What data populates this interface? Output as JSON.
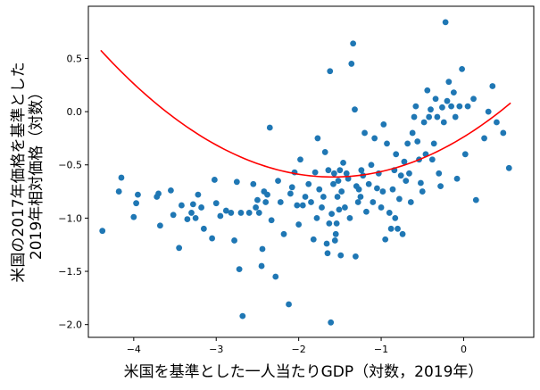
{
  "chart_data": {
    "type": "scatter",
    "xlabel": "米国を基準とした一人当たりGDP（対数，2019年）",
    "ylabel_lines": [
      "米国の2017年価格を基準とした",
      "2019年相対価格（対数）"
    ],
    "xlim": [
      -4.55,
      0.85
    ],
    "ylim": [
      -2.12,
      0.99
    ],
    "x_ticks": [
      -4,
      -3,
      -2,
      -1,
      0
    ],
    "y_ticks": [
      0.5,
      0.0,
      -0.5,
      -1.0,
      -1.5,
      -2.0
    ],
    "x_tick_labels": [
      "−4",
      "−3",
      "−2",
      "−1",
      "0"
    ],
    "y_tick_labels": [
      "0.5",
      "0.0",
      "−0.5",
      "−1.0",
      "−1.5",
      "−2.0"
    ],
    "point_color": "#1f77b4",
    "fit_color": "#ff0000",
    "fit": {
      "type": "quadratic",
      "coefficients": [
        -0.238,
        0.475,
        0.15
      ],
      "x_range": [
        -4.4,
        0.57
      ]
    },
    "points": [
      [
        -4.38,
        -1.12
      ],
      [
        -4.18,
        -0.75
      ],
      [
        -4.15,
        -0.62
      ],
      [
        -4.0,
        -0.99
      ],
      [
        -3.97,
        -0.86
      ],
      [
        -3.95,
        -0.78
      ],
      [
        -3.72,
        -0.8
      ],
      [
        -3.7,
        -0.77
      ],
      [
        -3.68,
        -1.07
      ],
      [
        -3.55,
        -0.74
      ],
      [
        -3.52,
        -0.97
      ],
      [
        -3.45,
        -1.28
      ],
      [
        -3.42,
        -0.88
      ],
      [
        -3.35,
        -1.01
      ],
      [
        -3.3,
        -0.95
      ],
      [
        -3.28,
        -0.87
      ],
      [
        -3.25,
        -1.0
      ],
      [
        -3.22,
        -0.78
      ],
      [
        -3.18,
        -0.9
      ],
      [
        -3.15,
        -1.1
      ],
      [
        -3.05,
        -1.19
      ],
      [
        -3.02,
        -0.64
      ],
      [
        -3.0,
        -0.86
      ],
      [
        -2.95,
        -0.98
      ],
      [
        -2.88,
        -0.93
      ],
      [
        -2.82,
        -0.95
      ],
      [
        -2.78,
        -1.21
      ],
      [
        -2.75,
        -0.66
      ],
      [
        -2.72,
        -1.48
      ],
      [
        -2.7,
        -0.95
      ],
      [
        -2.68,
        -1.92
      ],
      [
        -2.6,
        -0.95
      ],
      [
        -2.55,
        -0.68
      ],
      [
        -2.52,
        -0.9
      ],
      [
        -2.5,
        -0.83
      ],
      [
        -2.48,
        -0.95
      ],
      [
        -2.45,
        -1.45
      ],
      [
        -2.44,
        -1.29
      ],
      [
        -2.42,
        -0.75
      ],
      [
        -2.4,
        -0.85
      ],
      [
        -2.38,
        -0.78
      ],
      [
        -2.35,
        -0.15
      ],
      [
        -2.33,
        -1.02
      ],
      [
        -2.28,
        -1.55
      ],
      [
        -2.25,
        -0.65
      ],
      [
        -2.22,
        -0.85
      ],
      [
        -2.18,
        -1.15
      ],
      [
        -2.12,
        -1.81
      ],
      [
        -2.1,
        -0.77
      ],
      [
        -2.08,
        -0.71
      ],
      [
        -2.05,
        -0.57
      ],
      [
        -2.02,
        -0.88
      ],
      [
        -2.0,
        -1.06
      ],
      [
        -1.98,
        -0.45
      ],
      [
        -1.95,
        -0.88
      ],
      [
        -1.92,
        -0.8
      ],
      [
        -1.88,
        -0.68
      ],
      [
        -1.85,
        -0.85
      ],
      [
        -1.82,
        -1.2
      ],
      [
        -1.8,
        -0.57
      ],
      [
        -1.78,
        -1.0
      ],
      [
        -1.77,
        -0.25
      ],
      [
        -1.75,
        -0.73
      ],
      [
        -1.72,
        -0.9
      ],
      [
        -1.7,
        -0.8
      ],
      [
        -1.68,
        -0.38
      ],
      [
        -1.66,
        -1.24
      ],
      [
        -1.65,
        -1.33
      ],
      [
        -1.64,
        -0.55
      ],
      [
        -1.63,
        -1.05
      ],
      [
        -1.62,
        0.38
      ],
      [
        -1.61,
        -1.98
      ],
      [
        -1.6,
        -0.96
      ],
      [
        -1.58,
        -0.68
      ],
      [
        -1.57,
        -0.58
      ],
      [
        -1.56,
        -1.21
      ],
      [
        -1.55,
        -1.15
      ],
      [
        -1.54,
        -1.05
      ],
      [
        -1.53,
        -0.8
      ],
      [
        -1.52,
        -0.65
      ],
      [
        -1.51,
        -0.92
      ],
      [
        -1.5,
        -0.55
      ],
      [
        -1.49,
        -1.35
      ],
      [
        -1.48,
        -0.75
      ],
      [
        -1.46,
        -0.48
      ],
      [
        -1.44,
        -0.9
      ],
      [
        -1.42,
        -0.58
      ],
      [
        -1.4,
        -0.63
      ],
      [
        -1.38,
        -1.0
      ],
      [
        -1.36,
        0.45
      ],
      [
        -1.34,
        0.64
      ],
      [
        -1.32,
        0.02
      ],
      [
        -1.31,
        -1.36
      ],
      [
        -1.3,
        -0.7
      ],
      [
        -1.28,
        -0.85
      ],
      [
        -1.27,
        -0.73
      ],
      [
        -1.25,
        -0.8
      ],
      [
        -1.24,
        -0.55
      ],
      [
        -1.22,
        -0.6
      ],
      [
        -1.2,
        -0.2
      ],
      [
        -1.18,
        -0.94
      ],
      [
        -1.15,
        -0.68
      ],
      [
        -1.12,
        -0.5
      ],
      [
        -1.1,
        -0.85
      ],
      [
        -1.08,
        -0.25
      ],
      [
        -1.05,
        -0.72
      ],
      [
        -1.03,
        -0.58
      ],
      [
        -1.0,
        -0.9
      ],
      [
        -0.98,
        -0.75
      ],
      [
        -0.97,
        -0.12
      ],
      [
        -0.95,
        -1.2
      ],
      [
        -0.93,
        -0.3
      ],
      [
        -0.9,
        -0.95
      ],
      [
        -0.88,
        -1.1
      ],
      [
        -0.86,
        -0.73
      ],
      [
        -0.84,
        -0.55
      ],
      [
        -0.83,
        -1.0
      ],
      [
        -0.82,
        -0.4
      ],
      [
        -0.8,
        -1.1
      ],
      [
        -0.78,
        -0.82
      ],
      [
        -0.76,
        -0.6
      ],
      [
        -0.74,
        -1.15
      ],
      [
        -0.72,
        -0.47
      ],
      [
        -0.7,
        -0.65
      ],
      [
        -0.68,
        -0.3
      ],
      [
        -0.66,
        -0.58
      ],
      [
        -0.64,
        -0.85
      ],
      [
        -0.62,
        -0.2
      ],
      [
        -0.6,
        -0.05
      ],
      [
        -0.58,
        0.05
      ],
      [
        -0.56,
        -0.28
      ],
      [
        -0.54,
        -0.45
      ],
      [
        -0.52,
        -0.67
      ],
      [
        -0.5,
        -0.75
      ],
      [
        -0.48,
        -0.1
      ],
      [
        -0.46,
        -0.4
      ],
      [
        -0.44,
        0.2
      ],
      [
        -0.42,
        -0.05
      ],
      [
        -0.4,
        0.02
      ],
      [
        -0.38,
        -0.45
      ],
      [
        -0.36,
        -0.3
      ],
      [
        -0.34,
        0.12
      ],
      [
        -0.32,
        -0.05
      ],
      [
        -0.3,
        -0.58
      ],
      [
        -0.28,
        -0.7
      ],
      [
        -0.26,
        0.04
      ],
      [
        -0.24,
        -0.1
      ],
      [
        -0.22,
        0.84
      ],
      [
        -0.2,
        0.1
      ],
      [
        -0.18,
        0.28
      ],
      [
        -0.15,
        0.05
      ],
      [
        -0.12,
        0.18
      ],
      [
        -0.1,
        -0.05
      ],
      [
        -0.08,
        -0.63
      ],
      [
        -0.05,
        0.05
      ],
      [
        -0.02,
        0.4
      ],
      [
        0.02,
        -0.4
      ],
      [
        0.05,
        0.05
      ],
      [
        0.12,
        0.12
      ],
      [
        0.15,
        -0.83
      ],
      [
        0.25,
        -0.25
      ],
      [
        0.3,
        0.0
      ],
      [
        0.35,
        0.24
      ],
      [
        0.4,
        -0.1
      ],
      [
        0.48,
        -0.2
      ],
      [
        0.55,
        -0.53
      ]
    ]
  }
}
